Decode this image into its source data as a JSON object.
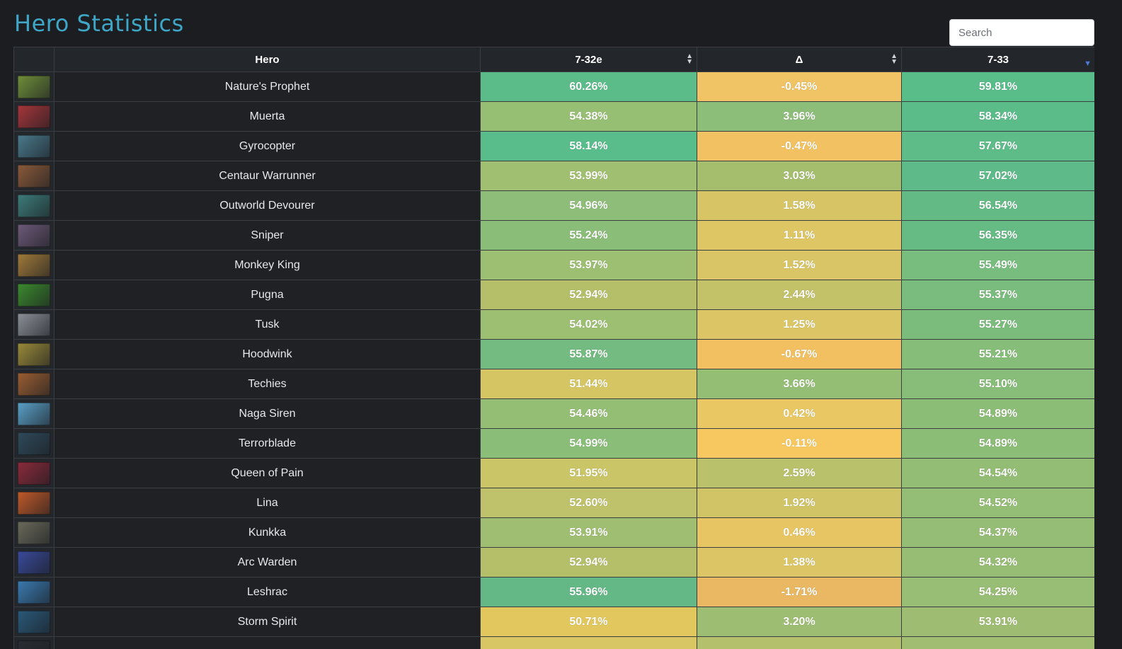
{
  "page": {
    "title": "Hero Statistics"
  },
  "search": {
    "placeholder": "Search"
  },
  "table": {
    "headers": {
      "icon": "",
      "hero": "Hero",
      "prev": "7-32e",
      "delta": "Δ",
      "cur": "7-33"
    },
    "sort_icons": {
      "prev": "sort-both-icon",
      "delta": "sort-both-icon",
      "cur": "sort-desc-icon"
    },
    "rows": [
      {
        "hero": "Nature's Prophet",
        "prev": "60.26%",
        "delta": "-0.45%",
        "cur": "59.81%",
        "icon_color": "#6f8e3a",
        "prev_color": "#5bbc8a",
        "delta_color": "#f0c365",
        "cur_color": "#59bd8a"
      },
      {
        "hero": "Muerta",
        "prev": "54.38%",
        "delta": "3.96%",
        "cur": "58.34%",
        "icon_color": "#a5363a",
        "prev_color": "#97bf73",
        "delta_color": "#8cbd79",
        "cur_color": "#5bbc8a"
      },
      {
        "hero": "Gyrocopter",
        "prev": "58.14%",
        "delta": "-0.47%",
        "cur": "57.67%",
        "icon_color": "#4a7a8c",
        "prev_color": "#58bc8b",
        "delta_color": "#f2c262",
        "cur_color": "#5dbc88"
      },
      {
        "hero": "Centaur Warrunner",
        "prev": "53.99%",
        "delta": "3.03%",
        "cur": "57.02%",
        "icon_color": "#8a5a3a",
        "prev_color": "#a1bf70",
        "delta_color": "#a4be6e",
        "cur_color": "#5ebb89"
      },
      {
        "hero": "Outworld Devourer",
        "prev": "54.96%",
        "delta": "1.58%",
        "cur": "56.54%",
        "icon_color": "#3d7c7a",
        "prev_color": "#8dbd79",
        "delta_color": "#d6c465",
        "cur_color": "#64ba85"
      },
      {
        "hero": "Sniper",
        "prev": "55.24%",
        "delta": "1.11%",
        "cur": "56.35%",
        "icon_color": "#6d5a78",
        "prev_color": "#8abd78",
        "delta_color": "#dfc664",
        "cur_color": "#66ba84"
      },
      {
        "hero": "Monkey King",
        "prev": "53.97%",
        "delta": "1.52%",
        "cur": "55.49%",
        "icon_color": "#a07a3a",
        "prev_color": "#9cbf72",
        "delta_color": "#d9c565",
        "cur_color": "#78bc7e"
      },
      {
        "hero": "Pugna",
        "prev": "52.94%",
        "delta": "2.44%",
        "cur": "55.37%",
        "icon_color": "#3c8a2e",
        "prev_color": "#b5bf6a",
        "delta_color": "#c3c268",
        "cur_color": "#7abc7d"
      },
      {
        "hero": "Tusk",
        "prev": "54.02%",
        "delta": "1.25%",
        "cur": "55.27%",
        "icon_color": "#8c8f98",
        "prev_color": "#9cbf72",
        "delta_color": "#dbc565",
        "cur_color": "#7bbc7c"
      },
      {
        "hero": "Hoodwink",
        "prev": "55.87%",
        "delta": "-0.67%",
        "cur": "55.21%",
        "icon_color": "#9a8a3a",
        "prev_color": "#73bb80",
        "delta_color": "#f2c060",
        "cur_color": "#85bd79"
      },
      {
        "hero": "Techies",
        "prev": "51.44%",
        "delta": "3.66%",
        "cur": "55.10%",
        "icon_color": "#9a5e32",
        "prev_color": "#d6c663",
        "delta_color": "#95be75",
        "cur_color": "#87bd78"
      },
      {
        "hero": "Naga Siren",
        "prev": "54.46%",
        "delta": "0.42%",
        "cur": "54.89%",
        "icon_color": "#5aa0c8",
        "prev_color": "#95be75",
        "delta_color": "#e9c763",
        "cur_color": "#8cbd77"
      },
      {
        "hero": "Terrorblade",
        "prev": "54.99%",
        "delta": "-0.11%",
        "cur": "54.89%",
        "icon_color": "#2f4a5a",
        "prev_color": "#89bd78",
        "delta_color": "#f6c85f",
        "cur_color": "#8cbd77"
      },
      {
        "hero": "Queen of Pain",
        "prev": "51.95%",
        "delta": "2.59%",
        "cur": "54.54%",
        "icon_color": "#8a2a3a",
        "prev_color": "#cac567",
        "delta_color": "#b9c16b",
        "cur_color": "#93bd75"
      },
      {
        "hero": "Lina",
        "prev": "52.60%",
        "delta": "1.92%",
        "cur": "54.52%",
        "icon_color": "#c05a2a",
        "prev_color": "#bfc26a",
        "delta_color": "#d0c466",
        "cur_color": "#94bd75"
      },
      {
        "hero": "Kunkka",
        "prev": "53.91%",
        "delta": "0.46%",
        "cur": "54.37%",
        "icon_color": "#6a6a5a",
        "prev_color": "#9fbe72",
        "delta_color": "#e8c563",
        "cur_color": "#96bd75"
      },
      {
        "hero": "Arc Warden",
        "prev": "52.94%",
        "delta": "1.38%",
        "cur": "54.32%",
        "icon_color": "#3a4a9a",
        "prev_color": "#b5bf6a",
        "delta_color": "#dcc565",
        "cur_color": "#97bd75"
      },
      {
        "hero": "Leshrac",
        "prev": "55.96%",
        "delta": "-1.71%",
        "cur": "54.25%",
        "icon_color": "#3a7ab0",
        "prev_color": "#64b885",
        "delta_color": "#eab763",
        "cur_color": "#98bd74"
      },
      {
        "hero": "Storm Spirit",
        "prev": "50.71%",
        "delta": "3.20%",
        "cur": "53.91%",
        "icon_color": "#2a5a7a",
        "prev_color": "#e2c75f",
        "delta_color": "#9dbe72",
        "cur_color": "#9fbd72"
      },
      {
        "hero": "",
        "prev": "",
        "delta": "",
        "cur": "",
        "icon_color": "#2a2d33",
        "prev_color": "#d8c563",
        "delta_color": "#b4c06b",
        "cur_color": "#a1bd72"
      }
    ]
  }
}
